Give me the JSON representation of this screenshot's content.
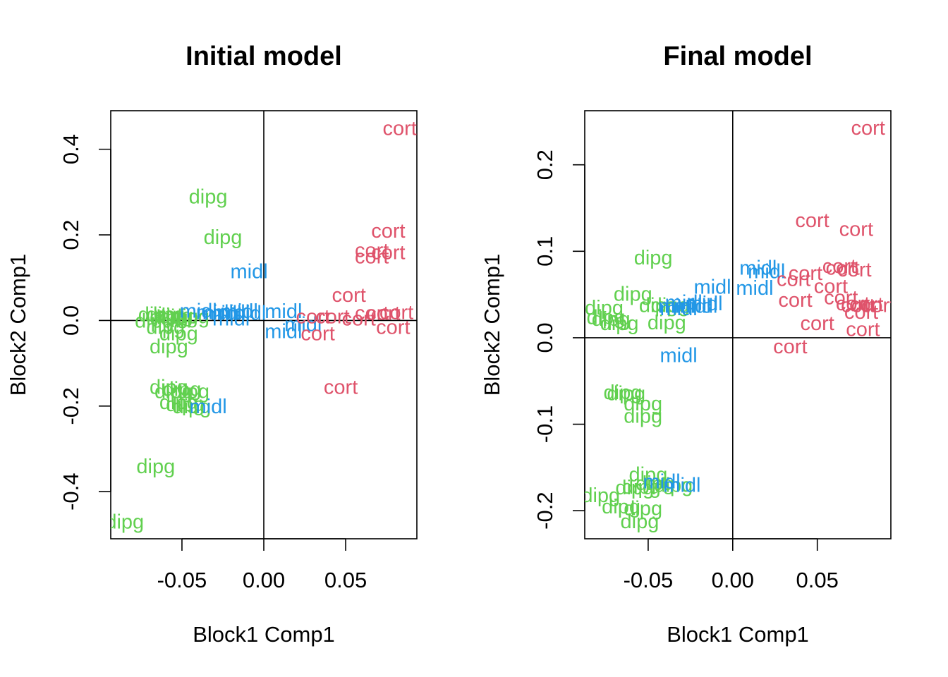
{
  "colors": {
    "dipg": "#61D04F",
    "midl": "#2297E6",
    "cort": "#DF536B",
    "axis": "#000000"
  },
  "chart_data": [
    {
      "type": "scatter",
      "title": "Initial model",
      "xlabel": "Block1 Comp1",
      "ylabel": "Block2 Comp1",
      "xlim": [
        -0.0935,
        0.0935
      ],
      "ylim": [
        -0.51,
        0.49
      ],
      "xticks": [
        -0.05,
        0.0,
        0.05
      ],
      "xtick_labels": [
        "-0.05",
        "0.00",
        "0.05"
      ],
      "yticks": [
        -0.4,
        -0.2,
        0.0,
        0.2,
        0.4
      ],
      "ytick_labels": [
        "-0.4",
        "-0.2",
        "0.0",
        "0.2",
        "0.4"
      ],
      "reference_lines": {
        "x": 0,
        "y": 0
      },
      "point_labels": [
        "dipg",
        "midl",
        "cort"
      ],
      "groups": [
        {
          "label": "dipg",
          "points": [
            [
              -0.034,
              0.29
            ],
            [
              -0.025,
              0.195
            ],
            [
              -0.065,
              0.015
            ],
            [
              -0.06,
              0.015
            ],
            [
              -0.055,
              0.012
            ],
            [
              -0.067,
              0.0
            ],
            [
              -0.058,
              0.008
            ],
            [
              -0.052,
              0.01
            ],
            [
              -0.045,
              0.01
            ],
            [
              -0.06,
              -0.015
            ],
            [
              -0.052,
              -0.03
            ],
            [
              -0.058,
              -0.06
            ],
            [
              -0.058,
              -0.155
            ],
            [
              -0.055,
              -0.165
            ],
            [
              -0.05,
              -0.16
            ],
            [
              -0.045,
              -0.165
            ],
            [
              -0.052,
              -0.19
            ],
            [
              -0.048,
              -0.195
            ],
            [
              -0.044,
              -0.2
            ],
            [
              -0.066,
              -0.34
            ],
            [
              -0.085,
              -0.47
            ]
          ]
        },
        {
          "label": "midl",
          "points": [
            [
              -0.009,
              0.115
            ],
            [
              -0.04,
              0.023
            ],
            [
              -0.03,
              0.02
            ],
            [
              -0.025,
              0.018
            ],
            [
              -0.02,
              0.02
            ],
            [
              -0.015,
              0.022
            ],
            [
              -0.01,
              0.018
            ],
            [
              -0.02,
              0.005
            ],
            [
              0.012,
              0.022
            ],
            [
              0.024,
              -0.008
            ],
            [
              0.012,
              -0.025
            ],
            [
              -0.034,
              -0.2
            ]
          ]
        },
        {
          "label": "cort",
          "points": [
            [
              0.083,
              0.45
            ],
            [
              0.076,
              0.21
            ],
            [
              0.066,
              0.165
            ],
            [
              0.076,
              0.16
            ],
            [
              0.066,
              0.15
            ],
            [
              0.052,
              0.06
            ],
            [
              0.03,
              0.01
            ],
            [
              0.042,
              0.01
            ],
            [
              0.066,
              0.018
            ],
            [
              0.073,
              0.018
            ],
            [
              0.081,
              0.02
            ],
            [
              0.058,
              0.005
            ],
            [
              0.079,
              -0.015
            ],
            [
              0.033,
              -0.03
            ],
            [
              0.047,
              -0.155
            ]
          ]
        }
      ]
    },
    {
      "type": "scatter",
      "title": "Final model",
      "xlabel": "Block1 Comp1",
      "ylabel": "Block2 Comp1",
      "xlim": [
        -0.0875,
        0.0935
      ],
      "ylim": [
        -0.2325,
        0.2625
      ],
      "xticks": [
        -0.05,
        0.0,
        0.05
      ],
      "xtick_labels": [
        "-0.05",
        "0.00",
        "0.05"
      ],
      "yticks": [
        -0.2,
        -0.1,
        0.0,
        0.1,
        0.2
      ],
      "ytick_labels": [
        "-0.2",
        "-0.1",
        "0.0",
        "0.1",
        "0.2"
      ],
      "reference_lines": {
        "x": 0,
        "y": 0
      },
      "point_labels": [
        "dipg",
        "midl",
        "cort"
      ],
      "groups": [
        {
          "label": "dipg",
          "points": [
            [
              -0.047,
              0.093
            ],
            [
              -0.059,
              0.051
            ],
            [
              -0.076,
              0.035
            ],
            [
              -0.075,
              0.024
            ],
            [
              -0.072,
              0.022
            ],
            [
              -0.067,
              0.017
            ],
            [
              -0.039,
              0.018
            ],
            [
              -0.044,
              0.038
            ],
            [
              -0.037,
              0.038
            ],
            [
              -0.065,
              -0.063
            ],
            [
              -0.063,
              -0.064
            ],
            [
              -0.053,
              -0.076
            ],
            [
              -0.053,
              -0.09
            ],
            [
              -0.05,
              -0.158
            ],
            [
              -0.046,
              -0.168
            ],
            [
              -0.058,
              -0.173
            ],
            [
              -0.054,
              -0.172
            ],
            [
              -0.035,
              -0.17
            ],
            [
              -0.078,
              -0.182
            ],
            [
              -0.066,
              -0.195
            ],
            [
              -0.053,
              -0.197
            ],
            [
              -0.055,
              -0.212
            ]
          ]
        },
        {
          "label": "midl",
          "points": [
            [
              0.015,
              0.081
            ],
            [
              0.02,
              0.077
            ],
            [
              -0.012,
              0.059
            ],
            [
              0.013,
              0.058
            ],
            [
              -0.029,
              0.041
            ],
            [
              -0.017,
              0.04
            ],
            [
              -0.024,
              0.037
            ],
            [
              -0.033,
              0.037
            ],
            [
              -0.02,
              0.037
            ],
            [
              -0.032,
              0.034
            ],
            [
              -0.032,
              -0.02
            ],
            [
              -0.042,
              -0.166
            ],
            [
              -0.03,
              -0.17
            ]
          ]
        },
        {
          "label": "cort",
          "points": [
            [
              0.08,
              0.243
            ],
            [
              0.047,
              0.136
            ],
            [
              0.073,
              0.126
            ],
            [
              0.063,
              0.083
            ],
            [
              0.065,
              0.081
            ],
            [
              0.072,
              0.079
            ],
            [
              0.043,
              0.075
            ],
            [
              0.036,
              0.068
            ],
            [
              0.058,
              0.06
            ],
            [
              0.037,
              0.044
            ],
            [
              0.064,
              0.047
            ],
            [
              0.071,
              0.04
            ],
            [
              0.074,
              0.038
            ],
            [
              0.079,
              0.039
            ],
            [
              0.086,
              0.038
            ],
            [
              0.076,
              0.03
            ],
            [
              0.05,
              0.017
            ],
            [
              0.077,
              0.01
            ],
            [
              0.034,
              -0.01
            ]
          ]
        }
      ]
    }
  ]
}
